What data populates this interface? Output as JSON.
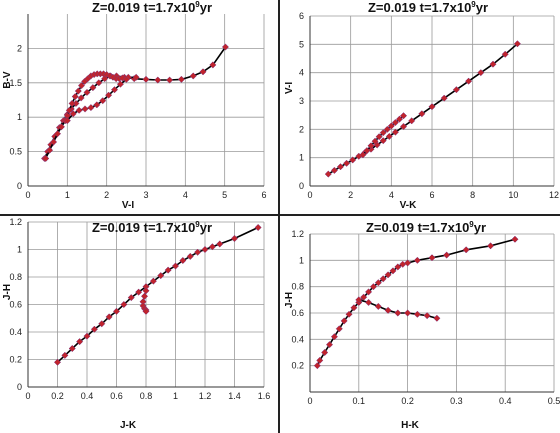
{
  "chart_data": [
    {
      "type": "line",
      "title_prefix": "Z=0.019   t=1.7x10",
      "title_sup": "9",
      "title_suffix": "yr",
      "xlabel": "V-I",
      "ylabel": "B-V",
      "xlim": [
        0,
        6
      ],
      "ylim": [
        0,
        2.5
      ],
      "xticks": [
        0,
        1,
        2,
        3,
        4,
        5,
        6
      ],
      "yticks": [
        0,
        0.5,
        1,
        1.5,
        2
      ],
      "xtick_labels": [
        "0",
        "1",
        "2",
        "3",
        "4",
        "5",
        "6"
      ],
      "ytick_labels": [
        "0",
        "0.5",
        "1",
        "1.5",
        "2"
      ],
      "grid": true,
      "series": [
        {
          "line_color": "#000000",
          "marker_color": "#c0242c",
          "x": [
            0.42,
            0.5,
            0.58,
            0.68,
            0.8,
            0.9,
            1.0,
            1.1,
            1.22,
            1.35,
            1.5,
            1.65,
            1.8,
            1.95,
            2.1,
            2.25,
            2.45,
            2.7,
            3.0,
            3.3,
            3.6,
            3.9,
            4.2,
            4.45,
            4.7,
            5.02
          ],
          "y": [
            0.4,
            0.5,
            0.6,
            0.72,
            0.85,
            0.95,
            1.04,
            1.12,
            1.2,
            1.28,
            1.36,
            1.43,
            1.5,
            1.56,
            1.6,
            1.6,
            1.58,
            1.56,
            1.55,
            1.54,
            1.54,
            1.55,
            1.6,
            1.66,
            1.76,
            2.02
          ]
        },
        {
          "line_color": "#000000",
          "marker_color": "#c0242c",
          "x": [
            0.45,
            0.55,
            0.65,
            0.75,
            0.85,
            0.95,
            1.0,
            1.05,
            1.12,
            1.2,
            1.28,
            1.36,
            1.44,
            1.52,
            1.6,
            1.68,
            1.76,
            1.84,
            1.92,
            2.0,
            2.08,
            2.16,
            2.24,
            2.32,
            2.4,
            2.55,
            2.75
          ],
          "y": [
            0.4,
            0.52,
            0.64,
            0.76,
            0.86,
            0.95,
            1.02,
            1.1,
            1.2,
            1.3,
            1.38,
            1.46,
            1.52,
            1.56,
            1.6,
            1.62,
            1.63,
            1.63,
            1.63,
            1.62,
            1.6,
            1.58,
            1.56,
            1.56,
            1.57,
            1.58,
            1.58
          ]
        },
        {
          "line_color": "#000000",
          "marker_color": "#c0242c",
          "x": [
            1.0,
            1.15,
            1.3,
            1.45,
            1.6,
            1.75,
            1.9,
            2.05,
            2.2,
            2.35,
            2.5
          ],
          "y": [
            0.95,
            1.05,
            1.1,
            1.12,
            1.14,
            1.18,
            1.24,
            1.32,
            1.4,
            1.48,
            1.55
          ]
        }
      ]
    },
    {
      "type": "line",
      "title_prefix": "Z=0.019   t=1.7x10",
      "title_sup": "9",
      "title_suffix": "yr",
      "xlabel": "V-K",
      "ylabel": "V-I",
      "xlim": [
        0,
        12
      ],
      "ylim": [
        0,
        6
      ],
      "xticks": [
        0,
        2,
        4,
        6,
        8,
        10,
        12
      ],
      "yticks": [
        0,
        1,
        2,
        3,
        4,
        5,
        6
      ],
      "xtick_labels": [
        "0",
        "2",
        "4",
        "6",
        "8",
        "10",
        "12"
      ],
      "ytick_labels": [
        "0",
        "1",
        "2",
        "3",
        "4",
        "5",
        "6"
      ],
      "grid": true,
      "series": [
        {
          "line_color": "#000000",
          "marker_color": "#c0242c",
          "x": [
            0.9,
            1.2,
            1.5,
            1.8,
            2.1,
            2.4,
            2.7,
            3.0,
            3.3,
            3.6,
            3.9,
            4.2,
            4.6,
            5.0,
            5.5,
            6.0,
            6.6,
            7.2,
            7.8,
            8.4,
            9.0,
            9.6,
            10.2
          ],
          "y": [
            0.42,
            0.55,
            0.68,
            0.8,
            0.92,
            1.05,
            1.18,
            1.3,
            1.45,
            1.6,
            1.75,
            1.9,
            2.1,
            2.3,
            2.55,
            2.8,
            3.1,
            3.4,
            3.7,
            4.0,
            4.3,
            4.65,
            5.02
          ]
        },
        {
          "line_color": "#000000",
          "marker_color": "#c0242c",
          "x": [
            2.6,
            2.8,
            3.0,
            3.2,
            3.4,
            3.6,
            3.8,
            4.0,
            4.2,
            4.4,
            4.6
          ],
          "y": [
            1.1,
            1.25,
            1.42,
            1.58,
            1.74,
            1.88,
            2.0,
            2.12,
            2.24,
            2.36,
            2.48
          ]
        }
      ]
    },
    {
      "type": "line",
      "title_prefix": "Z=0.019   t=1.7x10",
      "title_sup": "9",
      "title_suffix": "yr",
      "xlabel": "J-K",
      "ylabel": "J-H",
      "xlim": [
        0,
        1.6
      ],
      "ylim": [
        0,
        1.2
      ],
      "xticks": [
        0,
        0.2,
        0.4,
        0.6,
        0.8,
        1,
        1.2,
        1.4,
        1.6
      ],
      "yticks": [
        0,
        0.2,
        0.4,
        0.6,
        0.8,
        1,
        1.2
      ],
      "xtick_labels": [
        "0",
        "0.2",
        "0.4",
        "0.6",
        "0.8",
        "1",
        "1.2",
        "1.4",
        "1.6"
      ],
      "ytick_labels": [
        "0",
        "0.2",
        "0.4",
        "0.6",
        "0.8",
        "1",
        "1.2"
      ],
      "grid": true,
      "series": [
        {
          "line_color": "#000000",
          "marker_color": "#c0242c",
          "x": [
            0.2,
            0.25,
            0.3,
            0.35,
            0.4,
            0.45,
            0.5,
            0.55,
            0.6,
            0.65,
            0.7,
            0.75,
            0.8,
            0.85,
            0.9,
            0.95,
            1.0,
            1.05,
            1.1,
            1.15,
            1.2,
            1.25,
            1.3,
            1.4,
            1.56
          ],
          "y": [
            0.18,
            0.23,
            0.28,
            0.33,
            0.37,
            0.42,
            0.46,
            0.51,
            0.55,
            0.6,
            0.65,
            0.69,
            0.73,
            0.77,
            0.81,
            0.85,
            0.88,
            0.92,
            0.95,
            0.98,
            1.0,
            1.02,
            1.04,
            1.08,
            1.16
          ]
        },
        {
          "line_color": "#000000",
          "marker_color": "#c0242c",
          "x": [
            0.8,
            0.79,
            0.78,
            0.78,
            0.79,
            0.8,
            0.8
          ],
          "y": [
            0.7,
            0.66,
            0.62,
            0.59,
            0.57,
            0.56,
            0.55
          ]
        }
      ]
    },
    {
      "type": "line",
      "title_prefix": "Z=0.019   t=1.7x10",
      "title_sup": "9",
      "title_suffix": "yr",
      "xlabel": "H-K",
      "ylabel": "J-H",
      "xlim": [
        0,
        0.5
      ],
      "ylim": [
        0,
        1.2
      ],
      "xticks": [
        0,
        0.1,
        0.2,
        0.3,
        0.4,
        0.5
      ],
      "yticks": [
        0.2,
        0.4,
        0.6,
        0.8,
        1,
        1.2
      ],
      "xtick_labels": [
        "0",
        "0.1",
        "0.2",
        "0.3",
        "0.4",
        "0.5"
      ],
      "ytick_labels": [
        "0.2",
        "0.4",
        "0.6",
        "0.8",
        "1",
        "1.2"
      ],
      "grid": true,
      "series": [
        {
          "line_color": "#000000",
          "marker_color": "#c0242c",
          "x": [
            0.015,
            0.02,
            0.03,
            0.04,
            0.05,
            0.06,
            0.07,
            0.08,
            0.09,
            0.1,
            0.11,
            0.12,
            0.13,
            0.14,
            0.15,
            0.16,
            0.17,
            0.18,
            0.19,
            0.2,
            0.22,
            0.25,
            0.28,
            0.32,
            0.37,
            0.42
          ],
          "y": [
            0.2,
            0.24,
            0.3,
            0.36,
            0.42,
            0.48,
            0.54,
            0.59,
            0.64,
            0.68,
            0.72,
            0.76,
            0.8,
            0.83,
            0.86,
            0.89,
            0.92,
            0.95,
            0.97,
            0.98,
            1.0,
            1.02,
            1.04,
            1.08,
            1.11,
            1.16
          ]
        },
        {
          "line_color": "#000000",
          "marker_color": "#c0242c",
          "x": [
            0.1,
            0.12,
            0.14,
            0.16,
            0.18,
            0.2,
            0.22,
            0.24,
            0.26
          ],
          "y": [
            0.7,
            0.68,
            0.65,
            0.62,
            0.6,
            0.6,
            0.59,
            0.58,
            0.56
          ]
        }
      ]
    }
  ]
}
